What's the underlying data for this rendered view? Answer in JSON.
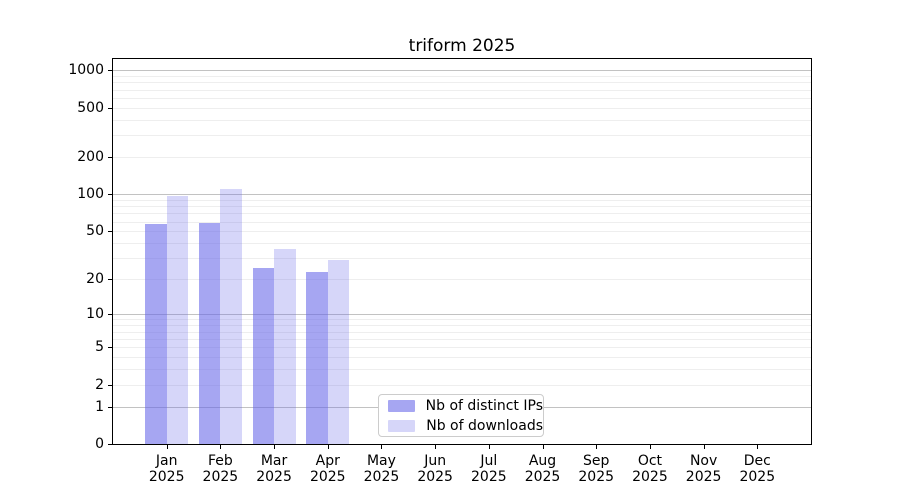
{
  "chart_data": {
    "type": "bar",
    "title": "triform 2025",
    "categories": [
      "Jan",
      "Feb",
      "Mar",
      "Apr",
      "May",
      "Jun",
      "Jul",
      "Aug",
      "Sep",
      "Oct",
      "Nov",
      "Dec"
    ],
    "year_label": "2025",
    "series": [
      {
        "name": "Nb of distinct IPs",
        "color": "#a7a7f2",
        "values": [
          57,
          59,
          25,
          23,
          0,
          0,
          0,
          0,
          0,
          0,
          0,
          0
        ]
      },
      {
        "name": "Nb of downloads",
        "color": "#d8d8f8",
        "values": [
          97,
          111,
          36,
          29,
          0,
          0,
          0,
          0,
          0,
          0,
          0,
          0
        ]
      }
    ],
    "y_ticks": [
      0,
      1,
      2,
      5,
      10,
      20,
      50,
      100,
      200,
      500,
      1000
    ],
    "y_scale": "log1p",
    "y_axis_max": 1234,
    "x_axis_slots": 13,
    "bar_width_frac": 0.4,
    "grid": true,
    "legend_position": "lower center",
    "xlabel": "",
    "ylabel": ""
  },
  "colors": {
    "bar_ips_rgba": "rgba(102,102,232,0.58)",
    "bar_downloads_rgba": "rgba(102,102,232,0.27)",
    "bar_ips_hex": "#a7a7f2",
    "bar_downloads_hex": "#d8d8f8",
    "grid_major": "#c2c2c2",
    "grid_minor": "#eeeeee",
    "axis": "#000000",
    "text": "#000000",
    "legend_border": "#cccccc",
    "background": "#ffffff"
  }
}
